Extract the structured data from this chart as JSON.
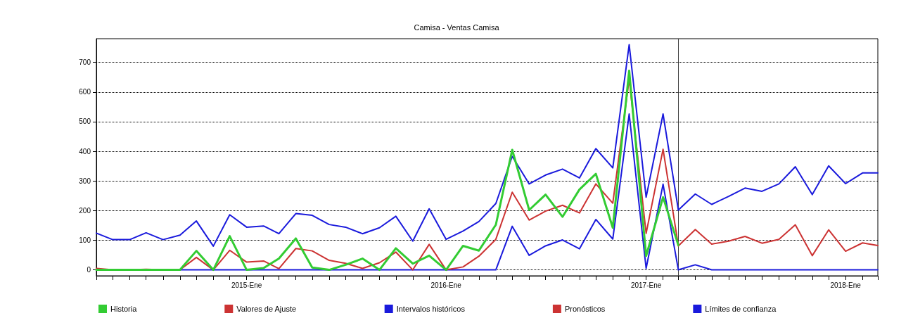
{
  "chart_data": {
    "type": "line",
    "title": "Camisa - Ventas Camisa",
    "xlim": [
      "2014-04",
      "2018-03"
    ],
    "xticks": [
      {
        "value": "2014-04",
        "label": null
      },
      {
        "value": "2014-05",
        "label": null
      },
      {
        "value": "2014-06",
        "label": null
      },
      {
        "value": "2014-07",
        "label": null
      },
      {
        "value": "2014-08",
        "label": null
      },
      {
        "value": "2014-09",
        "label": null
      },
      {
        "value": "2014-10",
        "label": null
      },
      {
        "value": "2014-11",
        "label": null
      },
      {
        "value": "2014-12",
        "label": null
      },
      {
        "value": "2015-01",
        "label": "2015-Ene"
      },
      {
        "value": "2015-02",
        "label": null
      },
      {
        "value": "2015-03",
        "label": null
      },
      {
        "value": "2015-04",
        "label": null
      },
      {
        "value": "2015-05",
        "label": null
      },
      {
        "value": "2015-06",
        "label": null
      },
      {
        "value": "2015-07",
        "label": null
      },
      {
        "value": "2015-08",
        "label": null
      },
      {
        "value": "2015-09",
        "label": null
      },
      {
        "value": "2015-10",
        "label": null
      },
      {
        "value": "2015-11",
        "label": null
      },
      {
        "value": "2015-12",
        "label": null
      },
      {
        "value": "2016-01",
        "label": "2016-Ene"
      },
      {
        "value": "2016-02",
        "label": null
      },
      {
        "value": "2016-03",
        "label": null
      },
      {
        "value": "2016-04",
        "label": null
      },
      {
        "value": "2016-05",
        "label": null
      },
      {
        "value": "2016-06",
        "label": null
      },
      {
        "value": "2016-07",
        "label": null
      },
      {
        "value": "2016-08",
        "label": null
      },
      {
        "value": "2016-09",
        "label": null
      },
      {
        "value": "2016-10",
        "label": null
      },
      {
        "value": "2016-11",
        "label": null
      },
      {
        "value": "2016-12",
        "label": null
      },
      {
        "value": "2017-01",
        "label": "2017-Ene"
      },
      {
        "value": "2017-02",
        "label": null
      },
      {
        "value": "2017-03",
        "label": null
      },
      {
        "value": "2017-04",
        "label": null
      },
      {
        "value": "2017-05",
        "label": null
      },
      {
        "value": "2017-06",
        "label": null
      },
      {
        "value": "2017-07",
        "label": null
      },
      {
        "value": "2017-08",
        "label": null
      },
      {
        "value": "2017-09",
        "label": null
      },
      {
        "value": "2017-10",
        "label": null
      },
      {
        "value": "2017-11",
        "label": null
      },
      {
        "value": "2017-12",
        "label": null
      },
      {
        "value": "2018-01",
        "label": "2018-Ene"
      },
      {
        "value": "2018-02",
        "label": null
      },
      {
        "value": "2018-03",
        "label": null
      }
    ],
    "ylim": [
      -20,
      780
    ],
    "yticks": [
      0,
      100,
      200,
      300,
      400,
      500,
      600,
      700
    ],
    "grid": "y",
    "legend": "bottom",
    "marker": "none",
    "line_style": "solid",
    "ref_lines": [
      {
        "axis": "x",
        "value": "2017-03",
        "color": "#404040"
      }
    ],
    "series": [
      {
        "name": "Historia",
        "color": "#33cc33",
        "x": [
          "2014-04",
          "2014-05",
          "2014-06",
          "2014-07",
          "2014-08",
          "2014-09",
          "2014-10",
          "2014-11",
          "2014-12",
          "2015-01",
          "2015-02",
          "2015-03",
          "2015-04",
          "2015-05",
          "2015-06",
          "2015-07",
          "2015-08",
          "2015-09",
          "2015-10",
          "2015-11",
          "2015-12",
          "2016-01",
          "2016-02",
          "2016-03",
          "2016-04",
          "2016-05",
          "2016-06",
          "2016-07",
          "2016-08",
          "2016-09",
          "2016-10",
          "2016-11",
          "2016-12",
          "2017-01",
          "2017-02",
          "2017-03"
        ],
        "values": [
          0,
          0,
          0,
          0,
          0,
          0,
          64,
          0,
          114,
          0,
          6,
          38,
          106,
          8,
          0,
          17,
          38,
          0,
          73,
          21,
          48,
          0,
          81,
          65,
          152,
          405,
          202,
          254,
          179,
          271,
          324,
          142,
          672,
          47,
          245,
          83
        ]
      },
      {
        "name": "Valores de Ajuste",
        "color": "#cc3333",
        "x": [
          "2014-04",
          "2014-05",
          "2014-06",
          "2014-07",
          "2014-08",
          "2014-09",
          "2014-10",
          "2014-11",
          "2014-12",
          "2015-01",
          "2015-02",
          "2015-03",
          "2015-04",
          "2015-05",
          "2015-06",
          "2015-07",
          "2015-08",
          "2015-09",
          "2015-10",
          "2015-11",
          "2015-12",
          "2016-01",
          "2016-02",
          "2016-03",
          "2016-04",
          "2016-05",
          "2016-06",
          "2016-07",
          "2016-08",
          "2016-09",
          "2016-10",
          "2016-11",
          "2016-12",
          "2017-01",
          "2017-02",
          "2017-03"
        ],
        "values": [
          5,
          0,
          0,
          2,
          0,
          0,
          42,
          0,
          66,
          26,
          30,
          4,
          72,
          64,
          32,
          22,
          5,
          24,
          60,
          0,
          86,
          0,
          10,
          46,
          103,
          262,
          168,
          198,
          218,
          192,
          290,
          225,
          644,
          123,
          407,
          81
        ]
      },
      {
        "name": "Intervalos históricos",
        "color": "#1a1adc",
        "x": [
          "2014-04",
          "2014-05",
          "2014-06",
          "2014-07",
          "2014-08",
          "2014-09",
          "2014-10",
          "2014-11",
          "2014-12",
          "2015-01",
          "2015-02",
          "2015-03",
          "2015-04",
          "2015-05",
          "2015-06",
          "2015-07",
          "2015-08",
          "2015-09",
          "2015-10",
          "2015-11",
          "2015-12",
          "2016-01",
          "2016-02",
          "2016-03",
          "2016-04",
          "2016-05",
          "2016-06",
          "2016-07",
          "2016-08",
          "2016-09",
          "2016-10",
          "2016-11",
          "2016-12",
          "2017-01",
          "2017-02",
          "2017-03"
        ],
        "values": [
          124,
          102,
          102,
          125,
          102,
          117,
          165,
          80,
          186,
          144,
          148,
          122,
          190,
          184,
          153,
          144,
          122,
          142,
          181,
          97,
          206,
          103,
          131,
          163,
          224,
          383,
          290,
          320,
          340,
          310,
          409,
          344,
          760,
          245,
          526,
          202
        ]
      },
      {
        "color": "#1a1adc",
        "x": [
          "2014-08",
          "2014-09",
          "2014-10",
          "2014-11",
          "2014-12",
          "2015-01",
          "2015-02",
          "2015-03",
          "2015-04",
          "2015-05",
          "2015-06",
          "2015-07",
          "2015-08",
          "2015-09",
          "2015-10",
          "2015-11",
          "2015-12",
          "2016-01",
          "2016-02",
          "2016-03",
          "2016-04",
          "2016-05",
          "2016-06",
          "2016-07",
          "2016-08",
          "2016-09",
          "2016-10",
          "2016-11",
          "2016-12",
          "2017-01",
          "2017-02",
          "2017-03"
        ],
        "values": [
          0,
          0,
          0,
          0,
          0,
          0,
          0,
          0,
          0,
          0,
          0,
          0,
          0,
          0,
          0,
          0,
          0,
          0,
          0,
          0,
          0,
          147,
          49,
          81,
          101,
          71,
          170,
          104,
          526,
          5,
          289,
          0
        ]
      },
      {
        "name": "Pronósticos",
        "color": "#cc3333",
        "x": [
          "2017-03",
          "2017-04",
          "2017-05",
          "2017-06",
          "2017-07",
          "2017-08",
          "2017-09",
          "2017-10",
          "2017-11",
          "2017-12",
          "2018-01",
          "2018-02",
          "2018-03"
        ],
        "values": [
          81,
          136,
          87,
          97,
          113,
          90,
          103,
          152,
          48,
          135,
          63,
          91,
          82
        ]
      },
      {
        "name": "Límites de confianza",
        "color": "#1a1adc",
        "x": [
          "2017-03",
          "2017-04",
          "2017-05",
          "2017-06",
          "2017-07",
          "2017-08",
          "2017-09",
          "2017-10",
          "2017-11",
          "2017-12",
          "2018-01",
          "2018-02",
          "2018-03"
        ],
        "values": [
          202,
          256,
          221,
          248,
          276,
          265,
          290,
          348,
          254,
          351,
          291,
          327,
          327
        ]
      },
      {
        "color": "#1a1adc",
        "x": [
          "2017-03",
          "2017-04",
          "2017-05",
          "2017-06",
          "2017-07",
          "2017-08",
          "2017-09",
          "2017-10",
          "2017-11",
          "2017-12",
          "2018-01",
          "2018-02",
          "2018-03"
        ],
        "values": [
          0,
          17,
          0,
          0,
          0,
          0,
          0,
          0,
          0,
          0,
          0,
          0,
          0
        ]
      }
    ]
  }
}
